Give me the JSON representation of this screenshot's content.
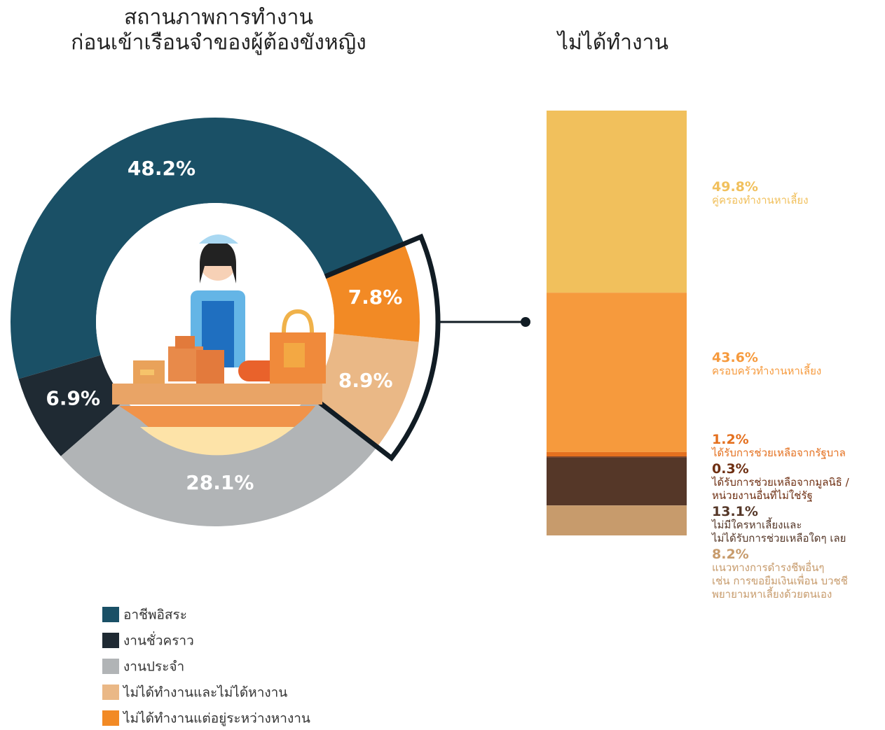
{
  "chart_data": [
    {
      "type": "pie",
      "donut": true,
      "title": [
        "สถานภาพการทำงาน",
        "ก่อนเข้าเรือนจำของผู้ต้องขังหญิง"
      ],
      "categories": [
        "อาชีพอิสระ",
        "งานชั่วคราว",
        "งานประจำ",
        "ไม่ได้ทำงานและไม่ได้หางาน",
        "ไม่ได้ทำงานแต่อยู่ระหว่างหางาน"
      ],
      "values": [
        48.2,
        6.9,
        28.1,
        8.9,
        7.8
      ],
      "value_labels": [
        "48.2%",
        "6.9%",
        "28.1%",
        "8.9%",
        "7.8%"
      ],
      "colors": [
        "#1a5066",
        "#1f2a33",
        "#b1b4b6",
        "#eab886",
        "#f28a25"
      ],
      "legend": "bottom-left"
    },
    {
      "type": "stacked-bar",
      "title": "ไม่ได้ทำงาน",
      "series": [
        {
          "name": "คู่ครองทำงานหาเลี้ยง",
          "color": "#f1c05c",
          "values": [
            49.8
          ],
          "value_labels": [
            "49.8%"
          ]
        },
        {
          "name": "ครอบครัวทำงานหาเลี้ยง",
          "color": "#f69a3d",
          "values": [
            43.6
          ],
          "value_labels": [
            "43.6%"
          ]
        },
        {
          "name": "ได้รับการช่วยเหลือจากรัฐบาล",
          "color": "#e4701f",
          "values": [
            1.2
          ],
          "value_labels": [
            "1.2%"
          ]
        },
        {
          "name": "ได้รับการช่วยเหลือจากมูลนิธิ /\nหน่วยงานอื่นที่ไม่ใช่รัฐ",
          "color": "#6e2f12",
          "values": [
            0.3
          ],
          "value_labels": [
            "0.3%"
          ]
        },
        {
          "name": "ไม่มีใครหาเลี้ยงและ\nไม่ได้รับการช่วยเหลือใดๆ เลย",
          "color": "#553728",
          "values": [
            13.1
          ],
          "value_labels": [
            "13.1%"
          ]
        },
        {
          "name": "แนวทางการดำรงชีพอื่นๆ\nเช่น การขอยืมเงินเพื่อน บวชชี\nพยายามหาเลี้ยงด้วยตนเอง",
          "color": "#c79b6c",
          "values": [
            8.2
          ],
          "value_labels": [
            "8.2%"
          ]
        }
      ]
    }
  ]
}
